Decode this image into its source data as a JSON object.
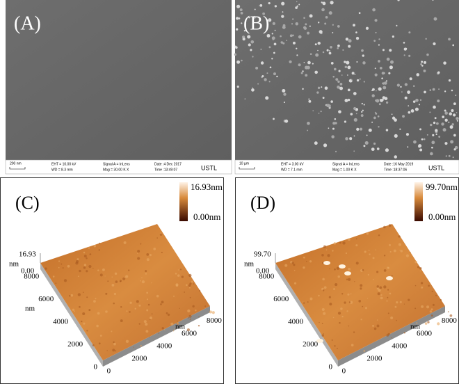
{
  "panels": [
    {
      "label": "(A)",
      "info": {
        "scale": "200 nm",
        "eht": "EHT = 10.00 kV",
        "wd": "WD = 8.3 mm",
        "signal": "Signal A = InLens",
        "mag": "Mag = 30.00 K X",
        "date": "Date :4 Dec 2017",
        "time": "Time :13:49:07",
        "lab": "USTL"
      }
    },
    {
      "label": "(B)",
      "info": {
        "scale": "10 µm",
        "eht": "EHT = 3.00 kV",
        "wd": "WD = 7.1 mm",
        "signal": "Signal A = InLens",
        "mag": "Mag = 1.00 K X",
        "date": "Date :16 May 2019",
        "time": "Time :18:37:06",
        "lab": "USTL"
      }
    },
    {
      "label": "(C)",
      "colorbar": {
        "max": "16.93nm",
        "min": "0.00nm"
      },
      "z_max": "16.93",
      "z_unit": "nm",
      "z_min": "0.00",
      "y_ticks": [
        "8000",
        "6000",
        "4000",
        "2000",
        "0"
      ],
      "y_unit": "nm",
      "x_ticks": [
        "0",
        "2000",
        "4000",
        "6000",
        "8000"
      ],
      "x_unit": "nm"
    },
    {
      "label": "(D)",
      "colorbar": {
        "max": "99.70nm",
        "min": "0.00nm"
      },
      "z_max": "99.70",
      "z_unit": "nm",
      "z_min": "0.00",
      "y_ticks": [
        "8000",
        "6000",
        "4000",
        "2000",
        "0"
      ],
      "x_ticks": [
        "0",
        "2000",
        "4000",
        "6000",
        "8000"
      ],
      "x_unit": "nm"
    }
  ]
}
